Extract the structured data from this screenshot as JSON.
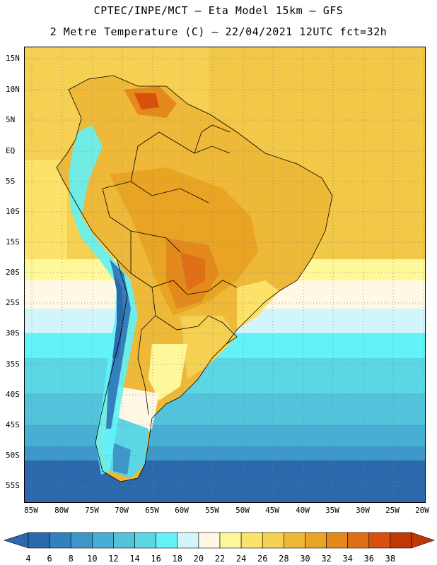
{
  "title": {
    "line1": "CPTEC/INPE/MCT –  Eta Model 15km – GFS",
    "line2": "2 Metre Temperature (C) – 22/04/2021 12UTC fct=32h"
  },
  "axes": {
    "lat_labels": [
      "15N",
      "10N",
      "5N",
      "EQ",
      "5S",
      "10S",
      "15S",
      "20S",
      "25S",
      "30S",
      "35S",
      "40S",
      "45S",
      "50S",
      "55S"
    ],
    "lon_labels": [
      "85W",
      "80W",
      "75W",
      "70W",
      "65W",
      "60W",
      "55W",
      "50W",
      "45W",
      "40W",
      "35W",
      "30W",
      "25W",
      "20W"
    ]
  },
  "colorbar": {
    "labels": [
      "4",
      "6",
      "8",
      "10",
      "12",
      "14",
      "16",
      "18",
      "20",
      "22",
      "24",
      "26",
      "28",
      "30",
      "32",
      "34",
      "36",
      "38"
    ],
    "colors": [
      "#2c69ac",
      "#3281bf",
      "#3d97c9",
      "#48afd4",
      "#52c3db",
      "#5ad6e4",
      "#63f2f7",
      "#d2f5fb",
      "#fff8e4",
      "#fff89a",
      "#fde26a",
      "#f6d052",
      "#eeb838",
      "#e8a422",
      "#e48a1c",
      "#e07018",
      "#d8500c",
      "#c03806"
    ]
  }
}
